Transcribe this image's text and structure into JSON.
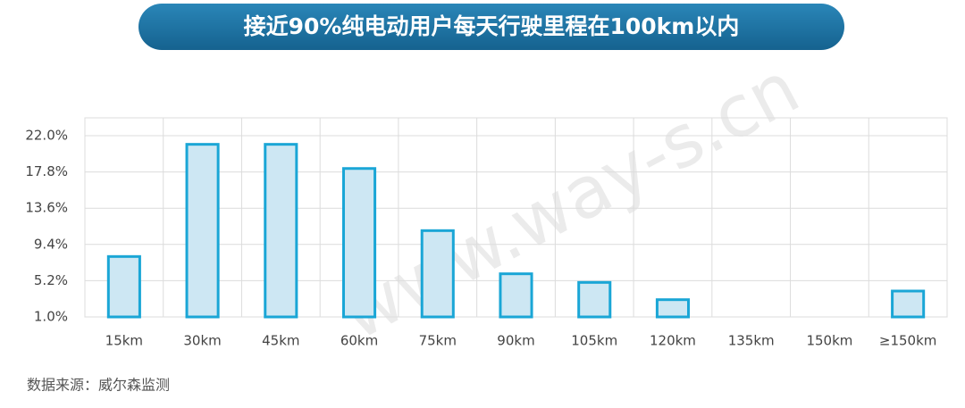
{
  "chart_data": {
    "type": "bar",
    "title": "接近90%纯电动用户每天行驶里程在100km以内",
    "source": "数据来源：威尔森监测",
    "watermark": "www.way-s.cn",
    "categories": [
      "15km",
      "30km",
      "45km",
      "60km",
      "75km",
      "90km",
      "105km",
      "120km",
      "135km",
      "150km",
      "≥150km"
    ],
    "values": [
      8.0,
      21.0,
      21.0,
      18.2,
      11.0,
      6.0,
      5.0,
      3.0,
      null,
      null,
      4.0
    ],
    "color": "#cde7f3",
    "edge_color": "#1aa6d6",
    "ylim": [
      1.0,
      22.0
    ],
    "yticks": [
      {
        "value": 1.0,
        "label": "1.0%"
      },
      {
        "value": 5.2,
        "label": "5.2%"
      },
      {
        "value": 9.4,
        "label": "9.4%"
      },
      {
        "value": 13.6,
        "label": "13.6%"
      },
      {
        "value": 17.8,
        "label": "17.8%"
      },
      {
        "value": 22.0,
        "label": "22.0%"
      }
    ],
    "grid": true
  }
}
